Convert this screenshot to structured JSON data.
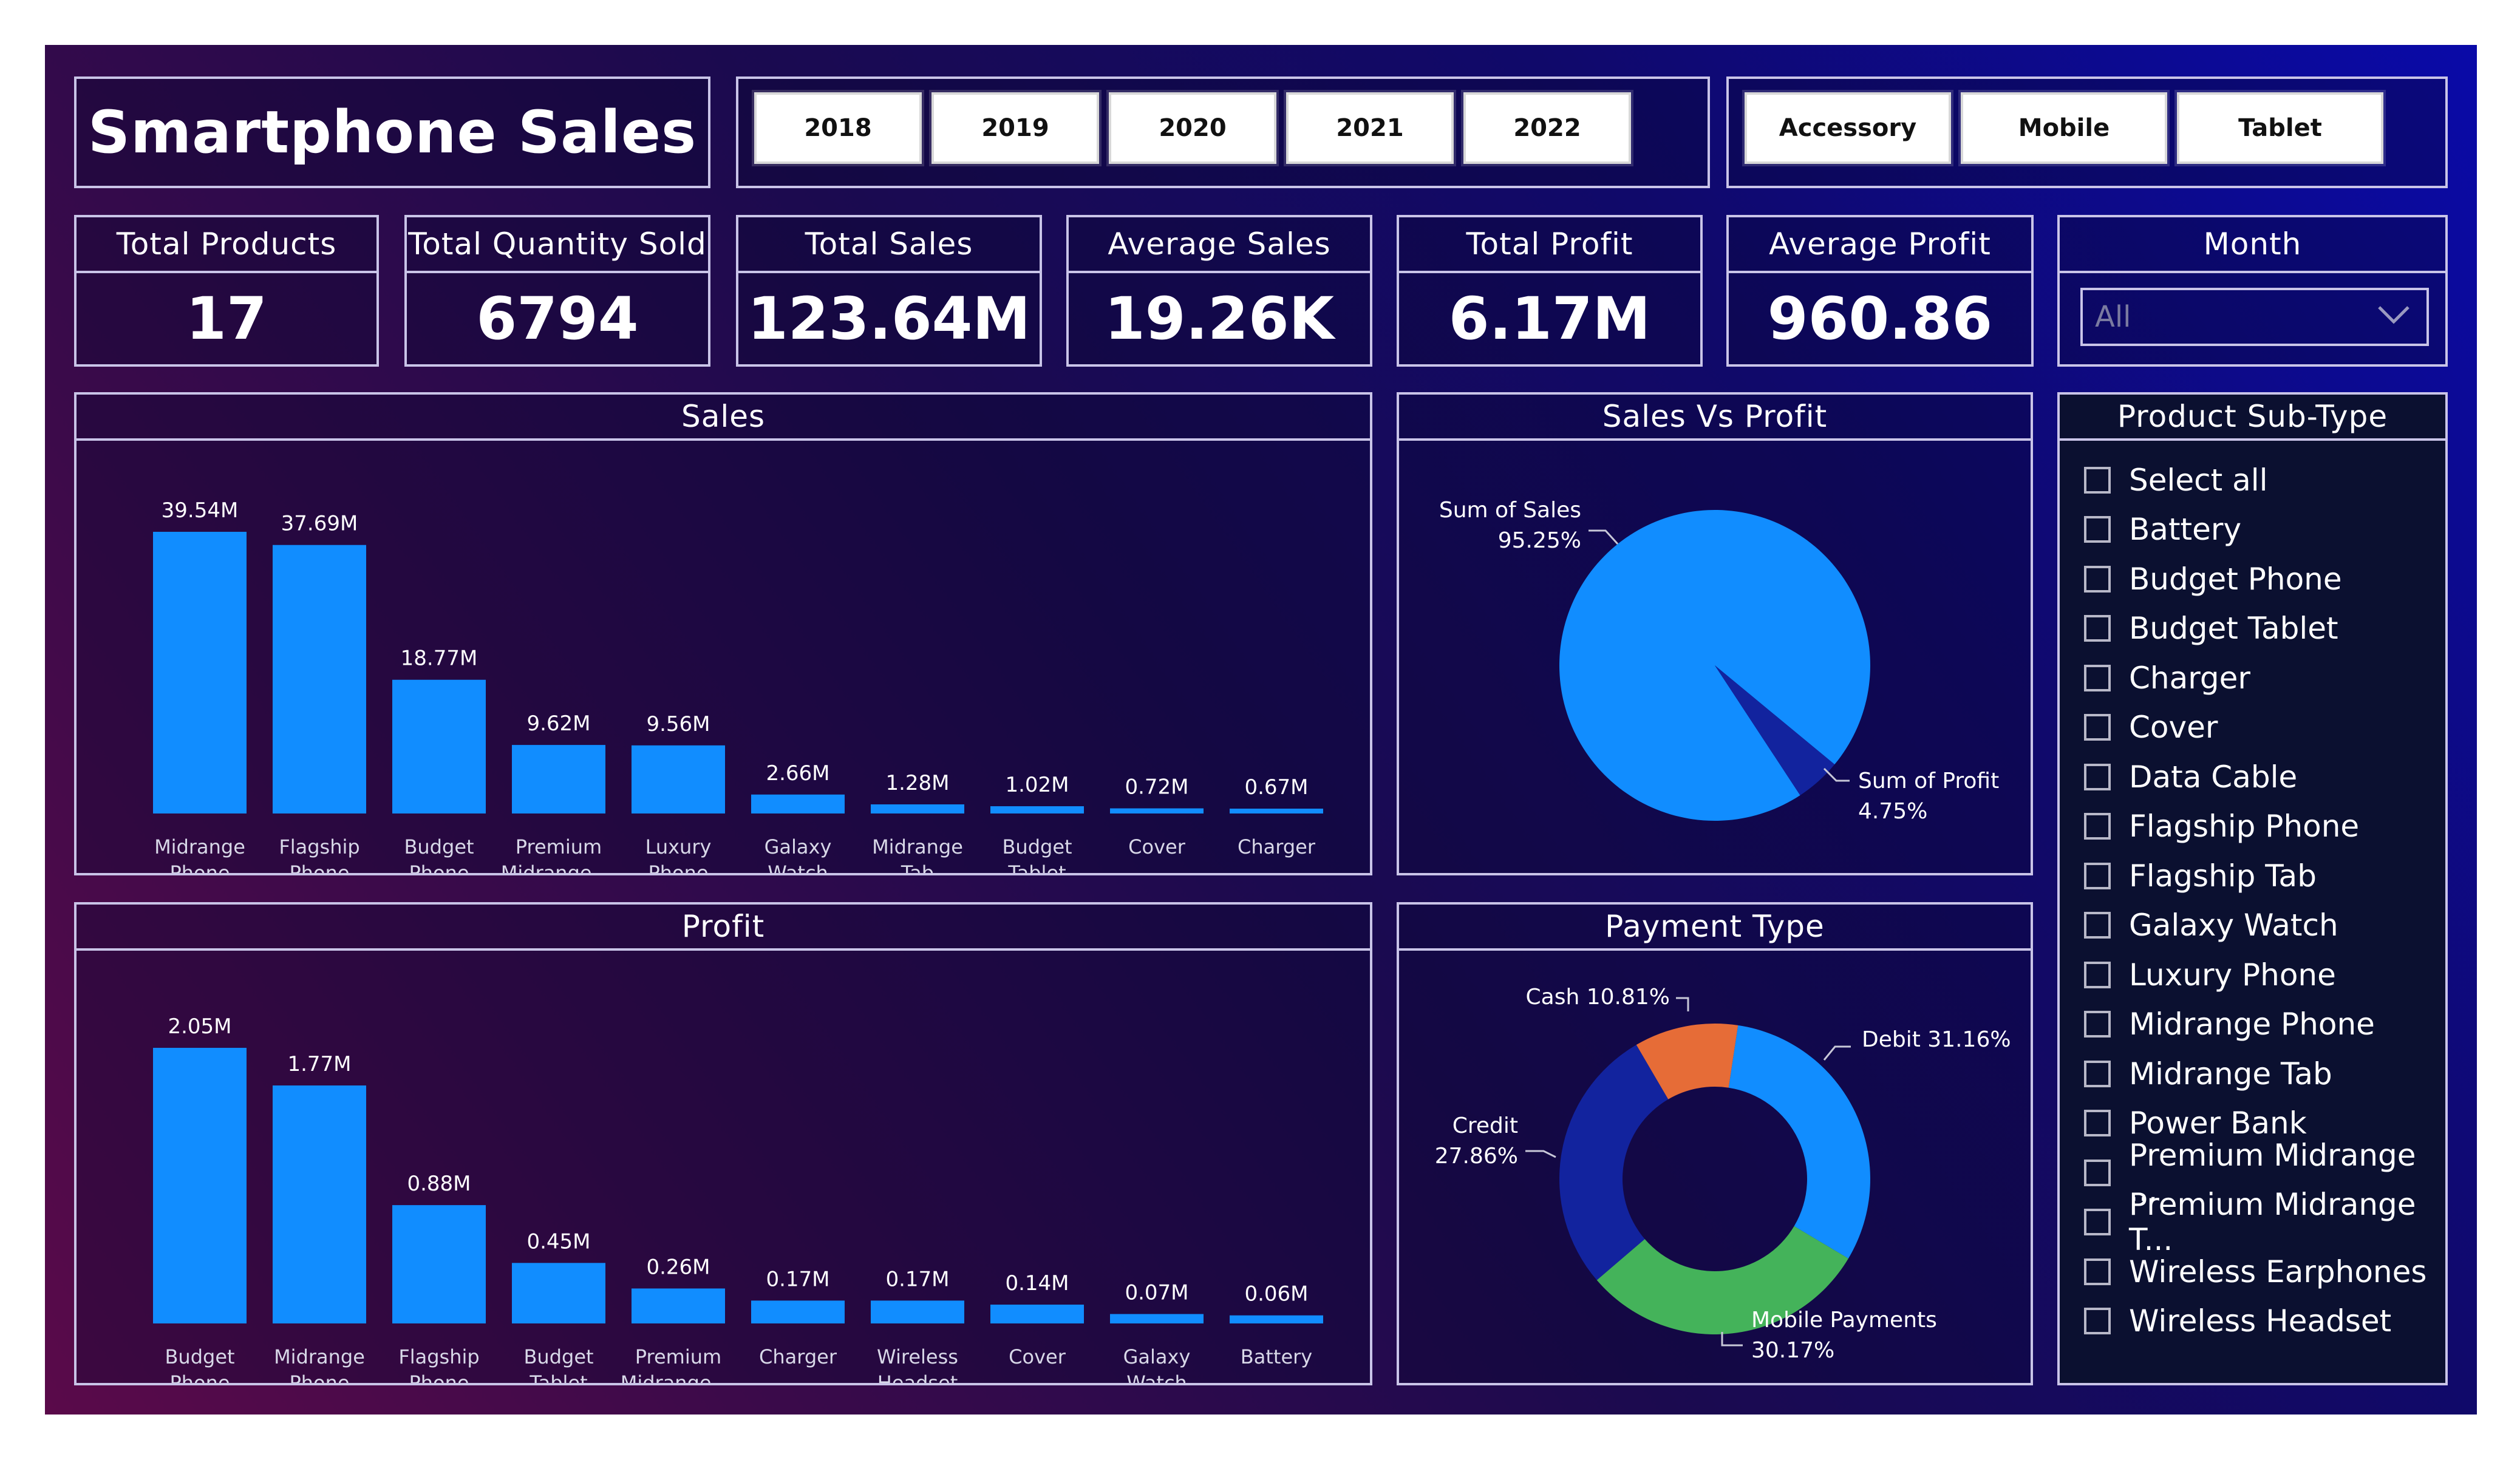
{
  "app": {
    "title": "Smartphone Sales"
  },
  "years": [
    "2018",
    "2019",
    "2020",
    "2021",
    "2022"
  ],
  "categories": [
    "Accessory",
    "Mobile",
    "Tablet"
  ],
  "kpis": [
    {
      "label": "Total Products",
      "value": "17"
    },
    {
      "label": "Total Quantity Sold",
      "value": "6794"
    },
    {
      "label": "Total Sales",
      "value": "123.64M"
    },
    {
      "label": "Average Sales",
      "value": "19.26K"
    },
    {
      "label": "Total Profit",
      "value": "6.17M"
    },
    {
      "label": "Average Profit",
      "value": "960.86"
    }
  ],
  "month": {
    "label": "Month",
    "value": "All",
    "icon": "chevron-down-icon"
  },
  "colors": {
    "bar": "#118dff",
    "profit_slice": "#12239e",
    "cash": "#e66c37",
    "debit": "#118dff",
    "credit": "#12239e",
    "mobile": "#44b35a"
  },
  "slicer": {
    "title": "Product Sub-Type",
    "items": [
      "Select all",
      "Battery",
      "Budget Phone",
      "Budget Tablet",
      "Charger",
      "Cover",
      "Data Cable",
      "Flagship Phone",
      "Flagship Tab",
      "Galaxy Watch",
      "Luxury Phone",
      "Midrange Phone",
      "Midrange Tab",
      "Power Bank",
      "Premium Midrange ...",
      "Premium Midrange T...",
      "Wireless Earphones",
      "Wireless Headset"
    ]
  },
  "chart_data": [
    {
      "id": "sales",
      "type": "bar",
      "title": "Sales",
      "categories": [
        [
          "Midrange",
          "Phone"
        ],
        [
          "Flagship",
          "Phone"
        ],
        [
          "Budget",
          "Phone"
        ],
        [
          "Premium",
          "Midrange ..."
        ],
        [
          "Luxury",
          "Phone"
        ],
        [
          "Galaxy",
          "Watch"
        ],
        [
          "Midrange",
          "Tab"
        ],
        [
          "Budget",
          "Tablet"
        ],
        [
          "Cover"
        ],
        [
          "Charger"
        ]
      ],
      "values": [
        39.54,
        37.69,
        18.77,
        9.62,
        9.56,
        2.66,
        1.28,
        1.02,
        0.72,
        0.67
      ],
      "labels": [
        "39.54M",
        "37.69M",
        "18.77M",
        "9.62M",
        "9.56M",
        "2.66M",
        "1.28M",
        "1.02M",
        "0.72M",
        "0.67M"
      ],
      "unit": "M",
      "grid": false
    },
    {
      "id": "profit",
      "type": "bar",
      "title": "Profit",
      "categories": [
        [
          "Budget",
          "Phone"
        ],
        [
          "Midrange",
          "Phone"
        ],
        [
          "Flagship",
          "Phone"
        ],
        [
          "Budget",
          "Tablet"
        ],
        [
          "Premium",
          "Midrange ..."
        ],
        [
          "Charger"
        ],
        [
          "Wireless",
          "Headset"
        ],
        [
          "Cover"
        ],
        [
          "Galaxy",
          "Watch"
        ],
        [
          "Battery"
        ]
      ],
      "values": [
        2.05,
        1.77,
        0.88,
        0.45,
        0.26,
        0.17,
        0.17,
        0.14,
        0.07,
        0.06
      ],
      "labels": [
        "2.05M",
        "1.77M",
        "0.88M",
        "0.45M",
        "0.26M",
        "0.17M",
        "0.17M",
        "0.14M",
        "0.07M",
        "0.06M"
      ],
      "unit": "M",
      "grid": false
    },
    {
      "id": "sales-vs-profit",
      "type": "pie",
      "title": "Sales Vs Profit",
      "slices": [
        {
          "name": "Sum of Sales",
          "value": 95.25,
          "label": "95.25%"
        },
        {
          "name": "Sum of Profit",
          "value": 4.75,
          "label": "4.75%"
        }
      ]
    },
    {
      "id": "payment-type",
      "type": "pie",
      "title": "Payment Type",
      "donut": true,
      "slices": [
        {
          "name": "Debit",
          "value": 31.16,
          "label": "Debit 31.16%"
        },
        {
          "name": "Mobile Payments",
          "value": 30.17,
          "label": "30.17%"
        },
        {
          "name": "Credit",
          "value": 27.86,
          "label": "27.86%"
        },
        {
          "name": "Cash",
          "value": 10.81,
          "label": "Cash 10.81%"
        }
      ]
    }
  ]
}
